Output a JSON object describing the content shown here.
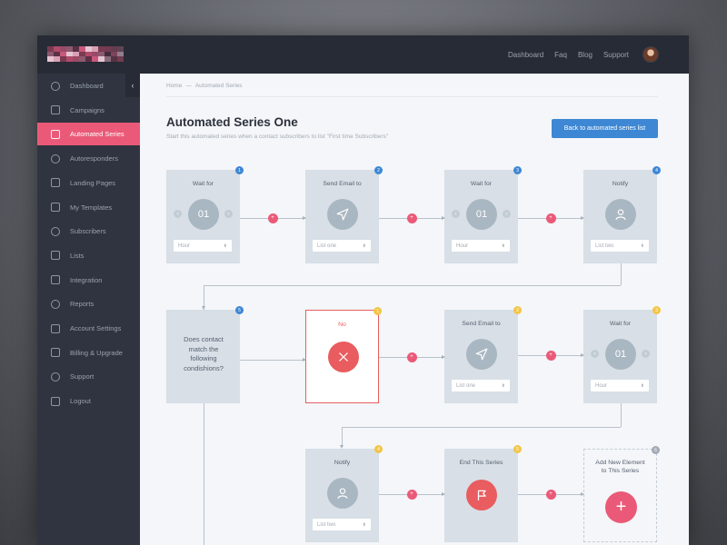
{
  "topnav": [
    "Dashboard",
    "Faq",
    "Blog",
    "Support"
  ],
  "sidebar": {
    "items": [
      {
        "label": "Dashboard",
        "icon": "dashboard-icon"
      },
      {
        "label": "Campaigns",
        "icon": "campaigns-icon"
      },
      {
        "label": "Automated Series",
        "icon": "automated-series-icon",
        "active": true
      },
      {
        "label": "Autoresponders",
        "icon": "autoresponders-icon"
      },
      {
        "label": "Landing Pages",
        "icon": "landing-pages-icon"
      },
      {
        "label": "My Templates",
        "icon": "templates-icon"
      },
      {
        "label": "Subscribers",
        "icon": "subscribers-icon"
      },
      {
        "label": "Lists",
        "icon": "lists-icon"
      },
      {
        "label": "Integration",
        "icon": "integration-icon"
      },
      {
        "label": "Reports",
        "icon": "reports-icon"
      },
      {
        "label": "Account Settings",
        "icon": "wrench-icon"
      },
      {
        "label": "Billing & Upgrade",
        "icon": "tag-icon"
      },
      {
        "label": "Support",
        "icon": "mail-icon"
      },
      {
        "label": "Logout",
        "icon": "lock-icon"
      }
    ]
  },
  "breadcrumb": {
    "home": "Home",
    "sep": "—",
    "current": "Automated Series"
  },
  "page": {
    "title": "Automated Series One",
    "subtitle": "Start this automated series when a contact subscribers to list \"First time Subscribers\"",
    "back_button": "Back to automated series list"
  },
  "flow": {
    "row1": [
      {
        "title": "Wait for",
        "value": "01",
        "select": "Hour",
        "badge": "1"
      },
      {
        "title": "Send Email to",
        "select": "List one",
        "badge": "2"
      },
      {
        "title": "Wait for",
        "value": "01",
        "select": "Hour",
        "badge": "3"
      },
      {
        "title": "Notify",
        "select": "List two",
        "badge": "4"
      }
    ],
    "row2": [
      {
        "text": "Does contact match the following condishions?",
        "badge": "5"
      },
      {
        "title": "No",
        "badge": "1"
      },
      {
        "title": "Send Email to",
        "select": "List one",
        "badge": "2"
      },
      {
        "title": "Wait for",
        "value": "01",
        "select": "Hour",
        "badge": "3"
      }
    ],
    "row3": [
      {
        "title": "Notify",
        "select": "List two",
        "badge": "4"
      },
      {
        "title": "End This Series",
        "badge": "5"
      },
      {
        "title": "Add New Element to This Series",
        "badge": "6"
      }
    ],
    "plus": "+",
    "arrow_left": "‹",
    "arrow_right": "›",
    "caret": "⬍"
  },
  "colors": {
    "accent": "#ea5a78",
    "primary": "#3d87d4",
    "sidebar": "#2f3440",
    "topbar": "#272b35"
  }
}
